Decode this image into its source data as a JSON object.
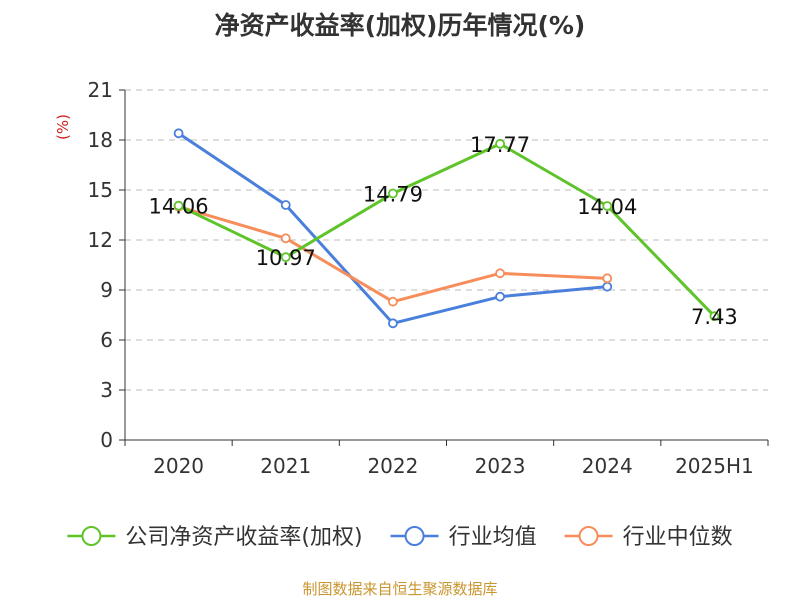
{
  "chart_data": {
    "type": "line",
    "title": "净资产收益率(加权)历年情况(%)",
    "ylabel": "(%)",
    "xlabel": "",
    "categories": [
      "2020",
      "2021",
      "2022",
      "2023",
      "2024",
      "2025H1"
    ],
    "ylim": [
      0,
      21
    ],
    "yticks": [
      0,
      3,
      6,
      9,
      12,
      15,
      18,
      21
    ],
    "grid": true,
    "legend_position": "bottom",
    "series": [
      {
        "name": "公司净资产收益率(加权)",
        "color": "#5ec42a",
        "show_labels": true,
        "values": [
          14.06,
          10.97,
          14.79,
          17.77,
          14.04,
          7.43
        ]
      },
      {
        "name": "行业均值",
        "color": "#4a7fdc",
        "show_labels": false,
        "values": [
          18.4,
          14.1,
          7.0,
          8.6,
          9.2,
          null
        ]
      },
      {
        "name": "行业中位数",
        "color": "#f68d5b",
        "show_labels": false,
        "values": [
          14.0,
          12.1,
          8.3,
          10.0,
          9.7,
          null
        ]
      }
    ]
  },
  "source": "制图数据来自恒生聚源数据库"
}
